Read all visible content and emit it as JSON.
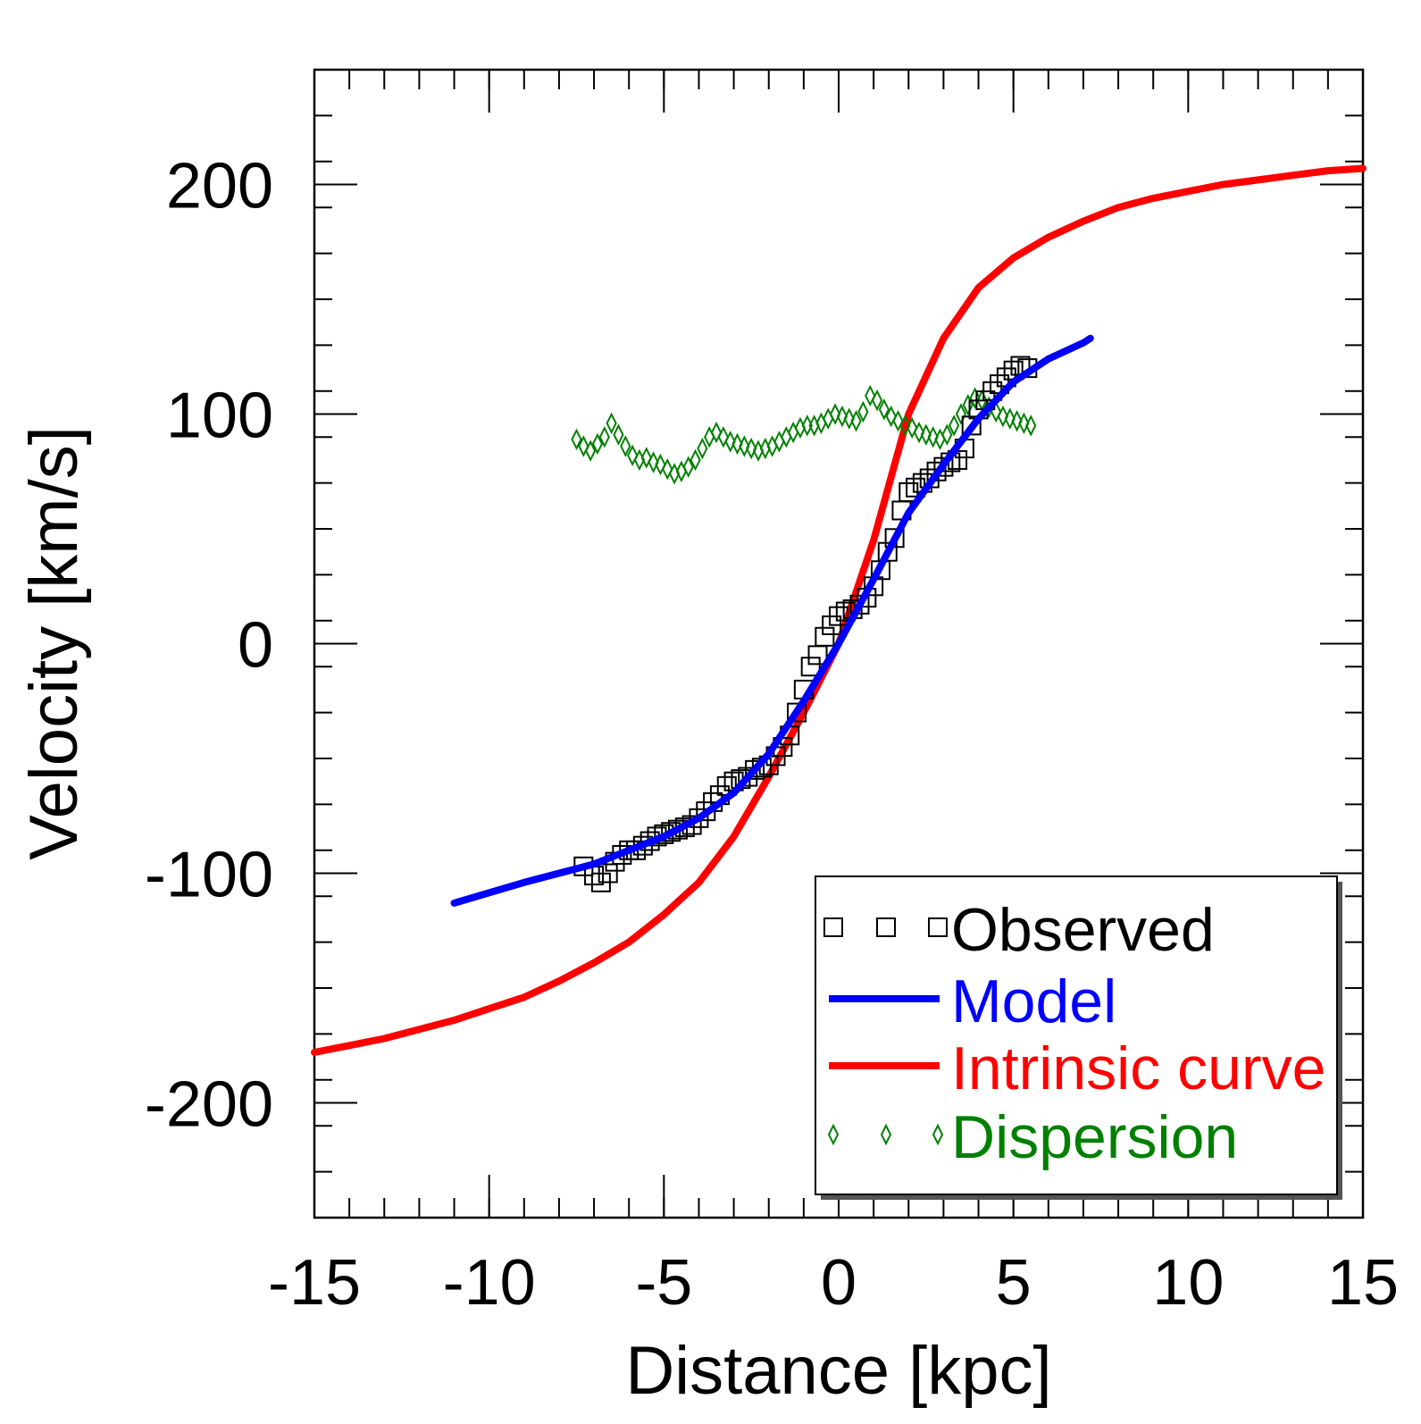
{
  "chart_data": {
    "type": "line",
    "xlabel": "Distance [kpc]",
    "ylabel": "Velocity [km/s]",
    "xlim": [
      -15,
      15
    ],
    "ylim": [
      -250,
      250
    ],
    "x_ticks": [
      -15,
      -10,
      -5,
      0,
      5,
      10,
      15
    ],
    "x_tick_labels": [
      "-15",
      "-10",
      "-5",
      "0",
      "5",
      "10",
      "15"
    ],
    "y_ticks": [
      -200,
      -100,
      0,
      100,
      200
    ],
    "y_tick_labels": [
      "-200",
      "-100",
      "0",
      "100",
      "200"
    ],
    "grid": false,
    "legend_position": "bottom-right",
    "series": [
      {
        "name": "Observed",
        "kind": "scatter",
        "marker": "square",
        "color": "#000000",
        "points": [
          [
            -7.3,
            -97
          ],
          [
            -7.0,
            -101
          ],
          [
            -6.8,
            -104
          ],
          [
            -6.6,
            -100
          ],
          [
            -6.4,
            -95
          ],
          [
            -6.2,
            -92
          ],
          [
            -6.0,
            -90
          ],
          [
            -5.8,
            -90
          ],
          [
            -5.6,
            -88
          ],
          [
            -5.4,
            -86
          ],
          [
            -5.2,
            -84
          ],
          [
            -5.0,
            -83
          ],
          [
            -4.8,
            -82
          ],
          [
            -4.6,
            -81
          ],
          [
            -4.4,
            -80
          ],
          [
            -4.2,
            -79
          ],
          [
            -4.0,
            -76
          ],
          [
            -3.8,
            -73
          ],
          [
            -3.6,
            -69
          ],
          [
            -3.4,
            -66
          ],
          [
            -3.2,
            -62
          ],
          [
            -3.0,
            -60
          ],
          [
            -2.8,
            -59
          ],
          [
            -2.6,
            -58
          ],
          [
            -2.4,
            -55
          ],
          [
            -2.2,
            -54
          ],
          [
            -2.0,
            -53
          ],
          [
            -1.8,
            -49
          ],
          [
            -1.6,
            -45
          ],
          [
            -1.4,
            -40
          ],
          [
            -1.2,
            -30
          ],
          [
            -1.0,
            -20
          ],
          [
            -0.8,
            -10
          ],
          [
            -0.6,
            -5
          ],
          [
            -0.4,
            3
          ],
          [
            -0.2,
            8
          ],
          [
            0.0,
            12
          ],
          [
            0.2,
            14
          ],
          [
            0.4,
            15
          ],
          [
            0.6,
            17
          ],
          [
            0.8,
            20
          ],
          [
            1.0,
            25
          ],
          [
            1.2,
            32
          ],
          [
            1.4,
            40
          ],
          [
            1.6,
            46
          ],
          [
            1.8,
            58
          ],
          [
            2.0,
            66
          ],
          [
            2.2,
            68
          ],
          [
            2.4,
            70
          ],
          [
            2.6,
            72
          ],
          [
            2.8,
            75
          ],
          [
            3.0,
            77
          ],
          [
            3.2,
            79
          ],
          [
            3.4,
            80
          ],
          [
            3.6,
            85
          ],
          [
            3.8,
            95
          ],
          [
            4.0,
            102
          ],
          [
            4.2,
            106
          ],
          [
            4.4,
            110
          ],
          [
            4.6,
            113
          ],
          [
            4.8,
            116
          ],
          [
            5.0,
            119
          ],
          [
            5.2,
            121
          ],
          [
            5.4,
            120
          ]
        ]
      },
      {
        "name": "Model",
        "kind": "line",
        "color": "#0000ff",
        "points": [
          [
            -11,
            -113
          ],
          [
            -10,
            -108.5
          ],
          [
            -9,
            -104
          ],
          [
            -8,
            -100
          ],
          [
            -7,
            -96
          ],
          [
            -6,
            -90
          ],
          [
            -5,
            -84
          ],
          [
            -4,
            -76
          ],
          [
            -3,
            -65
          ],
          [
            -2,
            -48
          ],
          [
            -1,
            -25
          ],
          [
            0,
            0
          ],
          [
            1,
            28
          ],
          [
            2,
            57
          ],
          [
            3,
            78
          ],
          [
            4,
            98
          ],
          [
            5,
            114
          ],
          [
            6,
            124
          ],
          [
            7,
            131
          ],
          [
            7.2,
            133
          ]
        ]
      },
      {
        "name": "Intrinsic curve",
        "kind": "line",
        "color": "#ff0000",
        "points": [
          [
            -15,
            -178
          ],
          [
            -14,
            -175
          ],
          [
            -13,
            -172
          ],
          [
            -12,
            -168
          ],
          [
            -11,
            -164
          ],
          [
            -10,
            -159
          ],
          [
            -9,
            -154
          ],
          [
            -8,
            -147
          ],
          [
            -7,
            -139
          ],
          [
            -6,
            -130
          ],
          [
            -5,
            -118
          ],
          [
            -4,
            -104
          ],
          [
            -3,
            -84
          ],
          [
            -2,
            -58
          ],
          [
            -1,
            -30
          ],
          [
            0,
            0
          ],
          [
            1,
            45
          ],
          [
            2,
            100
          ],
          [
            3,
            133
          ],
          [
            4,
            155
          ],
          [
            5,
            168
          ],
          [
            6,
            177
          ],
          [
            7,
            184
          ],
          [
            8,
            190
          ],
          [
            9,
            194
          ],
          [
            10,
            197
          ],
          [
            11,
            200
          ],
          [
            12,
            202
          ],
          [
            13,
            204
          ],
          [
            14,
            206
          ],
          [
            15,
            207
          ]
        ]
      },
      {
        "name": "Dispersion",
        "kind": "scatter",
        "marker": "diamond",
        "color": "#008000",
        "points": [
          [
            -7.5,
            89
          ],
          [
            -7.3,
            86
          ],
          [
            -7.1,
            84
          ],
          [
            -6.9,
            87
          ],
          [
            -6.7,
            90
          ],
          [
            -6.5,
            96
          ],
          [
            -6.3,
            91
          ],
          [
            -6.1,
            86
          ],
          [
            -5.9,
            82
          ],
          [
            -5.7,
            80
          ],
          [
            -5.5,
            81
          ],
          [
            -5.3,
            79
          ],
          [
            -5.1,
            78
          ],
          [
            -4.9,
            76
          ],
          [
            -4.7,
            74
          ],
          [
            -4.5,
            75
          ],
          [
            -4.3,
            77
          ],
          [
            -4.1,
            80
          ],
          [
            -3.9,
            85
          ],
          [
            -3.7,
            90
          ],
          [
            -3.5,
            92
          ],
          [
            -3.3,
            90
          ],
          [
            -3.1,
            88
          ],
          [
            -2.9,
            87
          ],
          [
            -2.7,
            86
          ],
          [
            -2.5,
            85
          ],
          [
            -2.3,
            84
          ],
          [
            -2.1,
            85
          ],
          [
            -1.9,
            86
          ],
          [
            -1.7,
            88
          ],
          [
            -1.5,
            90
          ],
          [
            -1.3,
            92
          ],
          [
            -1.1,
            94
          ],
          [
            -0.9,
            95
          ],
          [
            -0.7,
            95
          ],
          [
            -0.5,
            96
          ],
          [
            -0.3,
            98
          ],
          [
            -0.1,
            100
          ],
          [
            0.1,
            99
          ],
          [
            0.3,
            98
          ],
          [
            0.5,
            97
          ],
          [
            0.7,
            101
          ],
          [
            0.9,
            108
          ],
          [
            1.1,
            106
          ],
          [
            1.3,
            102
          ],
          [
            1.5,
            99
          ],
          [
            1.7,
            97
          ],
          [
            1.9,
            95
          ],
          [
            2.1,
            94
          ],
          [
            2.3,
            92
          ],
          [
            2.5,
            91
          ],
          [
            2.7,
            90
          ],
          [
            2.9,
            89
          ],
          [
            3.1,
            91
          ],
          [
            3.3,
            95
          ],
          [
            3.5,
            100
          ],
          [
            3.7,
            104
          ],
          [
            3.9,
            107
          ],
          [
            4.1,
            106
          ],
          [
            4.3,
            103
          ],
          [
            4.5,
            101
          ],
          [
            4.7,
            99
          ],
          [
            4.9,
            98
          ],
          [
            5.1,
            97
          ],
          [
            5.3,
            96
          ],
          [
            5.5,
            95
          ]
        ]
      }
    ]
  }
}
